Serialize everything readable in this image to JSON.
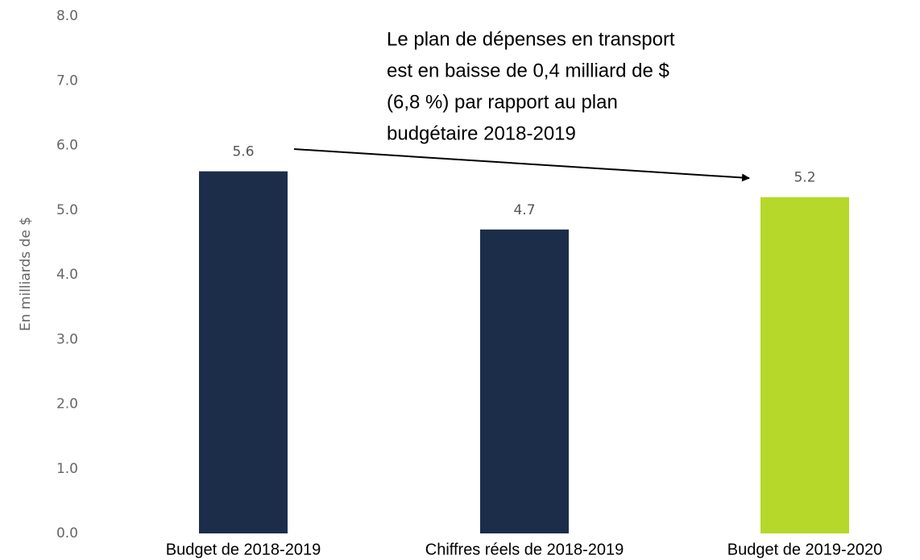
{
  "chart_data": {
    "type": "bar",
    "y_label": "En milliards de $",
    "annotation": [
      "Le plan de dépenses en transport",
      "est en baisse de 0,4 milliard de $",
      "(6,8 %) par rapport au plan",
      "budgétaire 2018-2019"
    ],
    "categories": [
      "Budget de 2018-2019",
      "Chiffres réels de 2018-2019",
      "Budget de 2019-2020"
    ],
    "values": [
      5.6,
      4.7,
      5.2
    ],
    "colors": [
      "#1c2d4a",
      "#1c2d4a",
      "#b5d82a"
    ],
    "ylim": [
      0,
      8
    ],
    "yticks": [
      {
        "value": 0,
        "label": "0.0"
      },
      {
        "value": 1,
        "label": "1.0"
      },
      {
        "value": 2,
        "label": "2.0"
      },
      {
        "value": 3,
        "label": "3.0"
      },
      {
        "value": 4,
        "label": "4.0"
      },
      {
        "value": 5,
        "label": "5.0"
      },
      {
        "value": 6,
        "label": "6.0"
      },
      {
        "value": 7,
        "label": "7.0"
      },
      {
        "value": 8,
        "label": "8.0"
      }
    ],
    "grid": false
  }
}
